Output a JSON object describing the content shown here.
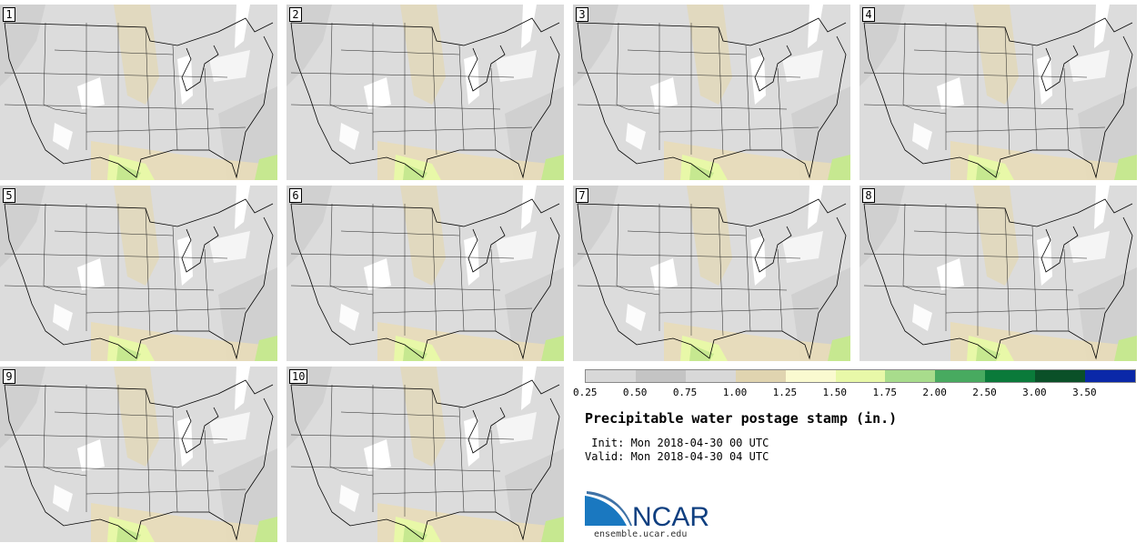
{
  "stamps": [
    {
      "label": "1"
    },
    {
      "label": "2"
    },
    {
      "label": "3"
    },
    {
      "label": "4"
    },
    {
      "label": "5"
    },
    {
      "label": "6"
    },
    {
      "label": "7"
    },
    {
      "label": "8"
    },
    {
      "label": "9"
    },
    {
      "label": "10"
    }
  ],
  "legend": {
    "colors": [
      "#d8d8d8",
      "#c4c4c4",
      "#d8d8d8",
      "#e0d4b0",
      "#fafad0",
      "#e8f8a8",
      "#a8dc8c",
      "#48aa60",
      "#0a7a3a",
      "#0a5028",
      "#0a28a8"
    ],
    "ticks": [
      "0.25",
      "0.50",
      "0.75",
      "1.00",
      "1.25",
      "1.50",
      "1.75",
      "2.00",
      "2.50",
      "3.00",
      "3.50"
    ]
  },
  "title": "Precipitable water postage stamp (in.)",
  "init": " Init: Mon 2018-04-30 00 UTC",
  "valid": "Valid: Mon 2018-04-30 04 UTC",
  "logo": {
    "text": "NCAR",
    "url": "ensemble.ucar.edu"
  }
}
